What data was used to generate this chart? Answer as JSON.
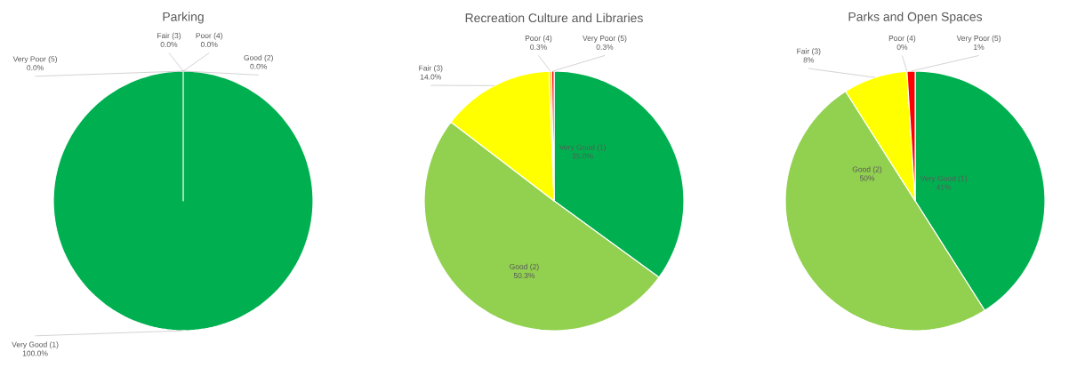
{
  "chart_data": [
    {
      "type": "pie",
      "title": "Parking",
      "categories": [
        "Very Good (1)",
        "Good (2)",
        "Fair (3)",
        "Poor (4)",
        "Very Poor (5)"
      ],
      "values": [
        100,
        0,
        0,
        0,
        0
      ],
      "colors": [
        "#00b050",
        "#92d050",
        "#ffff00",
        "#ffc000",
        "#ff0000"
      ],
      "value_labels": [
        "100.0%",
        "0.0%",
        "0.0%",
        "0.0%",
        "0.0%"
      ]
    },
    {
      "type": "pie",
      "title": "Recreation Culture and Libraries",
      "categories": [
        "Very Good (1)",
        "Good (2)",
        "Fair (3)",
        "Poor (4)",
        "Very Poor (5)"
      ],
      "values": [
        35.0,
        50.3,
        14.0,
        0.3,
        0.3
      ],
      "colors": [
        "#00b050",
        "#92d050",
        "#ffff00",
        "#ffc000",
        "#ff0000"
      ],
      "value_labels": [
        "35.0%",
        "50.3%",
        "14.0%",
        "0.3%",
        "0.3%"
      ]
    },
    {
      "type": "pie",
      "title": "Parks and Open Spaces",
      "categories": [
        "Very Good (1)",
        "Good (2)",
        "Fair (3)",
        "Poor (4)",
        "Very Poor (5)"
      ],
      "values": [
        41,
        50,
        8,
        0,
        1
      ],
      "colors": [
        "#00b050",
        "#92d050",
        "#ffff00",
        "#ffc000",
        "#ff0000"
      ],
      "value_labels": [
        "41%",
        "50%",
        "8%",
        "0%",
        "1%"
      ]
    }
  ]
}
